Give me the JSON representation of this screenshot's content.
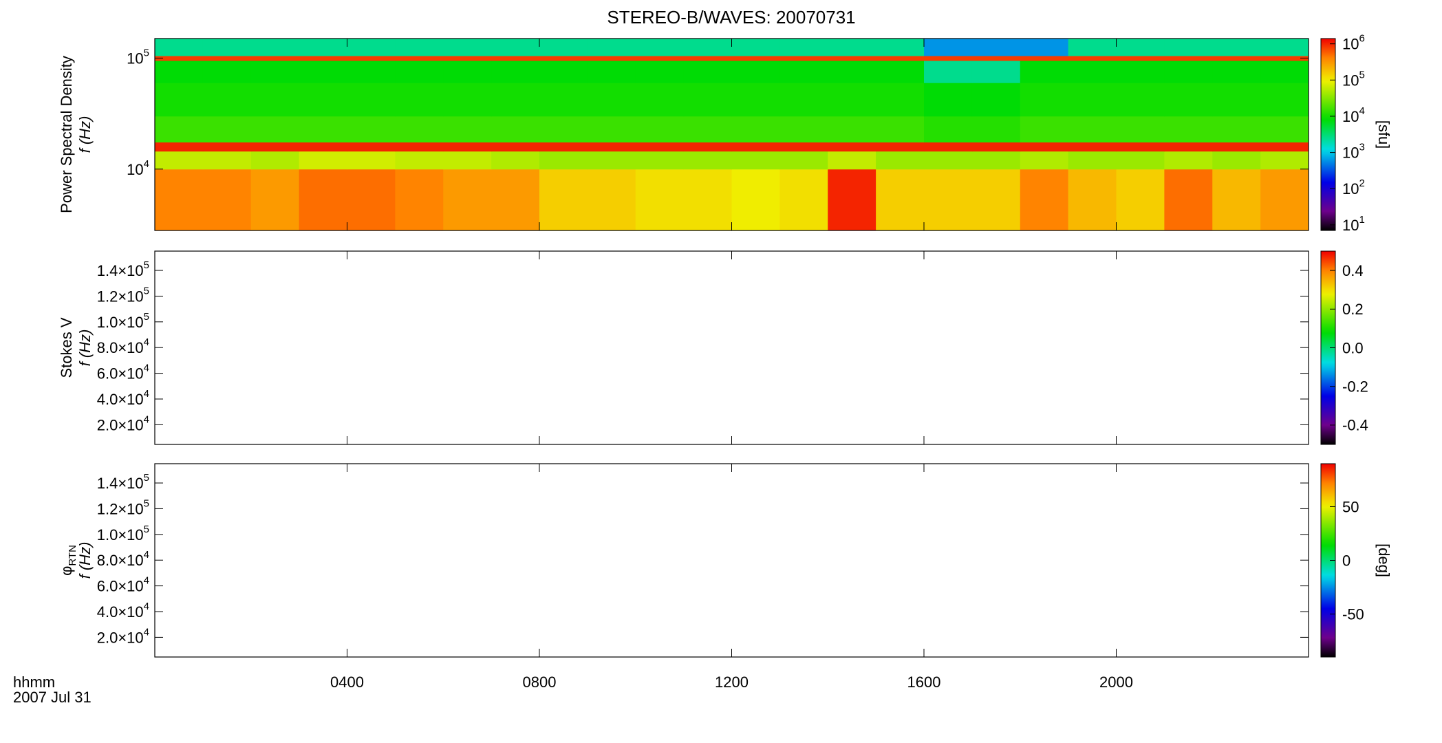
{
  "chart_data": [
    {
      "type": "heatmap",
      "title": "STEREO-B/WAVES: 20070731",
      "ylabel": [
        "Power Spectral Density",
        "f (Hz)"
      ],
      "ylog": true,
      "ylim": [
        2800,
        150000
      ],
      "yticks": [
        {
          "value": 10000,
          "label": "10",
          "sup": "4"
        },
        {
          "value": 100000,
          "label": "10",
          "sup": "5"
        }
      ],
      "x_edges": [
        0,
        1,
        2,
        3,
        4,
        5,
        6,
        7,
        8,
        9,
        10,
        11,
        12,
        13,
        14,
        15,
        16,
        17,
        18,
        19,
        20,
        21,
        22,
        23,
        24
      ],
      "y_edges": [
        2800,
        10000,
        14500,
        17500,
        30000,
        60000,
        95000,
        105000,
        150000
      ],
      "z": [
        [
          400000,
          400000,
          300000,
          500000,
          500000,
          400000,
          300000,
          300000,
          150000,
          150000,
          120000,
          120000,
          100000,
          120000,
          1000000,
          150000,
          150000,
          150000,
          400000,
          200000,
          150000,
          500000,
          200000,
          300000
        ],
        [
          60000,
          60000,
          50000,
          70000,
          70000,
          60000,
          60000,
          50000,
          40000,
          40000,
          40000,
          40000,
          40000,
          40000,
          60000,
          40000,
          40000,
          40000,
          50000,
          40000,
          40000,
          50000,
          40000,
          50000
        ],
        [
          1000000,
          1000000,
          1000000,
          1000000,
          1000000,
          1000000,
          1000000,
          1000000,
          1000000,
          1000000,
          1000000,
          1000000,
          1000000,
          1000000,
          1000000,
          1000000,
          1000000,
          1000000,
          1000000,
          1000000,
          1000000,
          1000000,
          1000000,
          1000000
        ],
        [
          15000,
          15000,
          15000,
          15000,
          15000,
          15000,
          15000,
          15000,
          15000,
          15000,
          15000,
          15000,
          15000,
          15000,
          15000,
          15000,
          12000,
          12000,
          15000,
          15000,
          15000,
          15000,
          15000,
          15000
        ],
        [
          10000,
          10000,
          10000,
          10000,
          10000,
          10000,
          10000,
          10000,
          10000,
          10000,
          10000,
          10000,
          10000,
          10000,
          10000,
          10000,
          8000,
          8000,
          10000,
          10000,
          10000,
          10000,
          10000,
          10000
        ],
        [
          8000,
          8000,
          8000,
          8000,
          8000,
          8000,
          8000,
          8000,
          8000,
          8000,
          8000,
          8000,
          8000,
          8000,
          8000,
          8000,
          2500,
          2500,
          8000,
          8000,
          8000,
          8000,
          8000,
          8000
        ],
        [
          800000,
          800000,
          800000,
          800000,
          800000,
          800000,
          800000,
          800000,
          800000,
          800000,
          800000,
          800000,
          800000,
          800000,
          800000,
          800000,
          800000,
          800000,
          800000,
          800000,
          800000,
          800000,
          800000,
          800000
        ],
        [
          2500,
          2500,
          2500,
          2500,
          2500,
          2500,
          2500,
          2500,
          2500,
          2500,
          2500,
          2500,
          2500,
          2500,
          2500,
          2500,
          600,
          600,
          600,
          2500,
          2500,
          2500,
          2500,
          2500
        ]
      ],
      "clim": [
        7,
        1400000
      ],
      "clog": true,
      "colorbar_label": "[sfu]",
      "cticks": [
        {
          "value": 10,
          "label": "10",
          "sup": "1"
        },
        {
          "value": 100,
          "label": "10",
          "sup": "2"
        },
        {
          "value": 1000,
          "label": "10",
          "sup": "3"
        },
        {
          "value": 10000,
          "label": "10",
          "sup": "4"
        },
        {
          "value": 100000,
          "label": "10",
          "sup": "5"
        },
        {
          "value": 1000000,
          "label": "10",
          "sup": "6"
        }
      ]
    },
    {
      "type": "heatmap",
      "ylabel": [
        "Stokes V",
        "f (Hz)"
      ],
      "ylim": [
        4700,
        155000
      ],
      "yticks": [
        {
          "value": 20000,
          "label": "2.0×10",
          "sup": "4"
        },
        {
          "value": 40000,
          "label": "4.0×10",
          "sup": "4"
        },
        {
          "value": 60000,
          "label": "6.0×10",
          "sup": "4"
        },
        {
          "value": 80000,
          "label": "8.0×10",
          "sup": "4"
        },
        {
          "value": 100000,
          "label": "1.0×10",
          "sup": "5"
        },
        {
          "value": 120000,
          "label": "1.2×10",
          "sup": "5"
        },
        {
          "value": 140000,
          "label": "1.4×10",
          "sup": "5"
        }
      ],
      "clim": [
        -0.5,
        0.5
      ],
      "cticks": [
        -0.4,
        -0.2,
        {
          "value": 0,
          "label": "0.0"
        },
        0.2,
        0.4
      ]
    },
    {
      "type": "heatmap",
      "ylabel": [
        "φ",
        "f (Hz)"
      ],
      "ylabel_sub": "RTN",
      "ylim": [
        4700,
        155000
      ],
      "yticks": [
        {
          "value": 20000,
          "label": "2.0×10",
          "sup": "4"
        },
        {
          "value": 40000,
          "label": "4.0×10",
          "sup": "4"
        },
        {
          "value": 60000,
          "label": "6.0×10",
          "sup": "4"
        },
        {
          "value": 80000,
          "label": "8.0×10",
          "sup": "4"
        },
        {
          "value": 100000,
          "label": "1.0×10",
          "sup": "5"
        },
        {
          "value": 120000,
          "label": "1.2×10",
          "sup": "5"
        },
        {
          "value": 140000,
          "label": "1.4×10",
          "sup": "5"
        }
      ],
      "clim": [
        -90,
        90
      ],
      "colorbar_label": "[deg]",
      "cticks": [
        -50,
        0,
        50
      ],
      "xlim": [
        0,
        24
      ],
      "xticks": [
        {
          "value": 4,
          "label": "0400"
        },
        {
          "value": 8,
          "label": "0800"
        },
        {
          "value": 12,
          "label": "1200"
        },
        {
          "value": 16,
          "label": "1600"
        },
        {
          "value": 20,
          "label": "2000"
        }
      ],
      "xlabel": [
        "hhmm",
        "2007 Jul 31"
      ]
    }
  ]
}
